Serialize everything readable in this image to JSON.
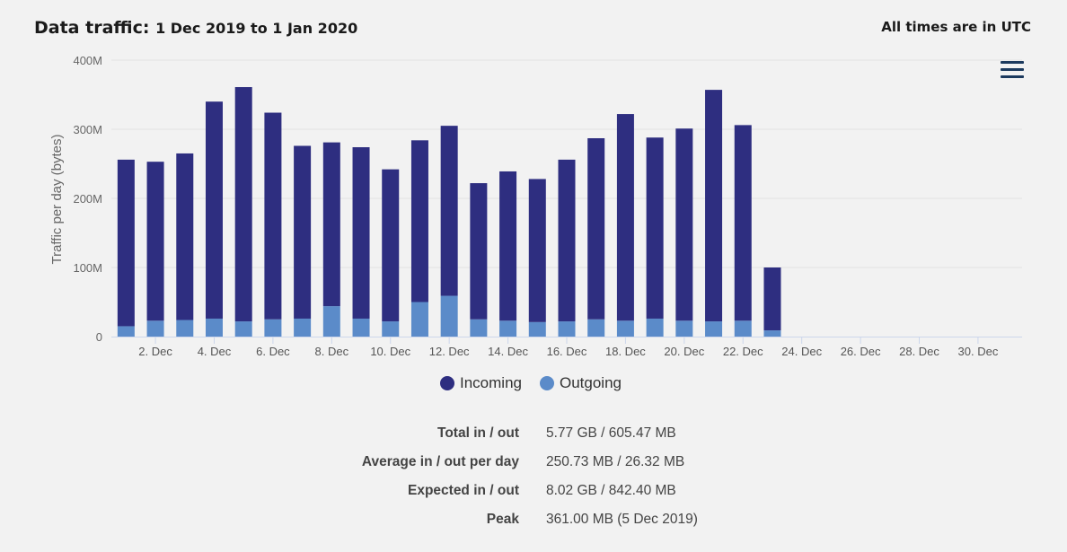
{
  "header": {
    "title_prefix": "Data traffic:",
    "title_range": "1 Dec 2019 to 1 Jan 2020",
    "timezone_note": "All times are in UTC"
  },
  "menu": {
    "icon": "hamburger-menu-icon"
  },
  "legend": {
    "incoming": "Incoming",
    "outgoing": "Outgoing"
  },
  "colors": {
    "incoming": "#2e2e80",
    "outgoing": "#5b8bc9",
    "grid": "#e2e2e2",
    "axis": "#ccd6eb"
  },
  "chart_data": {
    "type": "bar",
    "stacked": true,
    "ylabel": "Traffic per day (bytes)",
    "ylim": [
      0,
      400
    ],
    "y_unit": "M",
    "y_ticks": [
      "0",
      "100M",
      "200M",
      "300M",
      "400M"
    ],
    "categories": [
      "1. Dec",
      "2. Dec",
      "3. Dec",
      "4. Dec",
      "5. Dec",
      "6. Dec",
      "7. Dec",
      "8. Dec",
      "9. Dec",
      "10. Dec",
      "11. Dec",
      "12. Dec",
      "13. Dec",
      "14. Dec",
      "15. Dec",
      "16. Dec",
      "17. Dec",
      "18. Dec",
      "19. Dec",
      "20. Dec",
      "21. Dec",
      "22. Dec",
      "23. Dec",
      "24. Dec",
      "25. Dec",
      "26. Dec",
      "27. Dec",
      "28. Dec",
      "29. Dec",
      "30. Dec",
      "31. Dec"
    ],
    "x_tick_labels": [
      "2. Dec",
      "4. Dec",
      "6. Dec",
      "8. Dec",
      "10. Dec",
      "12. Dec",
      "14. Dec",
      "16. Dec",
      "18. Dec",
      "20. Dec",
      "22. Dec",
      "24. Dec",
      "26. Dec",
      "28. Dec",
      "30. Dec"
    ],
    "series": [
      {
        "name": "Outgoing",
        "values": [
          15,
          23,
          24,
          26,
          22,
          25,
          26,
          44,
          26,
          22,
          50,
          59,
          25,
          23,
          21,
          22,
          25,
          23,
          26,
          23,
          22,
          23,
          9,
          0,
          0,
          0,
          0,
          0,
          0,
          0,
          0
        ]
      },
      {
        "name": "Incoming",
        "values": [
          241,
          230,
          241,
          314,
          339,
          299,
          250,
          237,
          248,
          220,
          234,
          246,
          197,
          216,
          207,
          234,
          262,
          299,
          262,
          278,
          335,
          283,
          91,
          0,
          0,
          0,
          0,
          0,
          0,
          0,
          0
        ]
      }
    ],
    "grid": true,
    "legend_position": "bottom-center"
  },
  "stats": [
    {
      "label": "Total in / out",
      "value": "5.77 GB / 605.47 MB"
    },
    {
      "label": "Average in / out per day",
      "value": "250.73 MB / 26.32 MB"
    },
    {
      "label": "Expected in / out",
      "value": "8.02 GB / 842.40 MB"
    },
    {
      "label": "Peak",
      "value": "361.00 MB (5 Dec 2019)"
    }
  ]
}
